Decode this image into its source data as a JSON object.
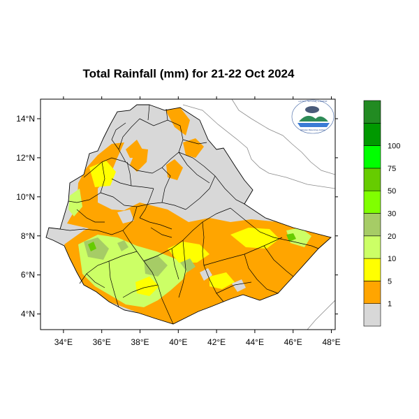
{
  "title": "Total Rainfall (mm) for 21-22 Oct 2024",
  "logo": {
    "top_text": "ኢትዮጵያ ሜትዮሮሎጂ ኢንስቲትዩት",
    "bottom_text": "Ethiopian Meteorology Institute"
  },
  "axes": {
    "x_ticks": [
      {
        "value": 34,
        "label": "34°E"
      },
      {
        "value": 36,
        "label": "36°E"
      },
      {
        "value": 38,
        "label": "38°E"
      },
      {
        "value": 40,
        "label": "40°E"
      },
      {
        "value": 42,
        "label": "42°E"
      },
      {
        "value": 44,
        "label": "44°E"
      },
      {
        "value": 46,
        "label": "46°E"
      },
      {
        "value": 48,
        "label": "48°E"
      }
    ],
    "y_ticks": [
      {
        "value": 4,
        "label": "4°N"
      },
      {
        "value": 6,
        "label": "6°N"
      },
      {
        "value": 8,
        "label": "8°N"
      },
      {
        "value": 10,
        "label": "10°N"
      },
      {
        "value": 12,
        "label": "12°N"
      },
      {
        "value": 14,
        "label": "14°N"
      }
    ],
    "xlim": [
      32.8,
      48.2
    ],
    "ylim": [
      3.2,
      15.0
    ]
  },
  "colorbar": {
    "colors": [
      "#d8d8d8",
      "#ffa500",
      "#ffff00",
      "#ccff66",
      "#a6cc66",
      "#80ff00",
      "#66cc00",
      "#00ff00",
      "#009900",
      "#228b22"
    ],
    "labels": [
      "1",
      "5",
      "10",
      "20",
      "30",
      "50",
      "75",
      "100"
    ]
  },
  "chart_data": {
    "type": "heatmap",
    "title": "Total Rainfall (mm) for 21-22 Oct 2024",
    "variable": "Total Rainfall (mm)",
    "period": "21-22 Oct 2024",
    "levels_mm": [
      1,
      5,
      10,
      20,
      30,
      50,
      75,
      100
    ],
    "colors": [
      "#d8d8d8",
      "#ffa500",
      "#ffff00",
      "#ccff66",
      "#a6cc66",
      "#80ff00",
      "#66cc00",
      "#00ff00",
      "#009900",
      "#228b22"
    ],
    "xlim": [
      32.8,
      48.2
    ],
    "ylim": [
      3.2,
      15.0
    ],
    "x_units": "°E",
    "y_units": "°N"
  }
}
